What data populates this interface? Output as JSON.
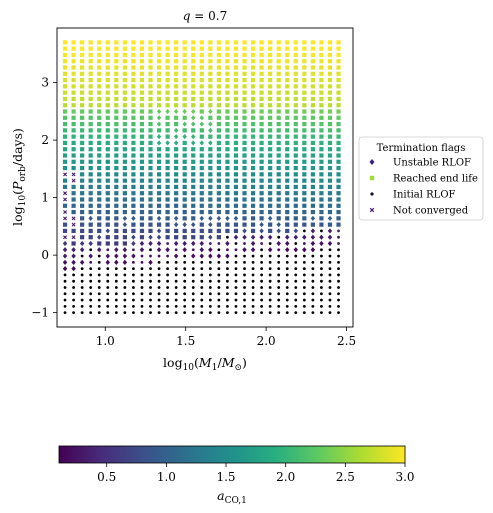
{
  "chart_data": {
    "type": "scatter",
    "title": "q = 0.7",
    "xlabel": "log10(M1/M⊙)",
    "ylabel": "log10(Porb/days)",
    "xlim": [
      0.7,
      2.54
    ],
    "ylim": [
      -1.25,
      3.95
    ],
    "xticks": [
      1.0,
      1.5,
      2.0,
      2.5
    ],
    "xtick_labels": [
      "1.0",
      "1.5",
      "2.0",
      "2.5"
    ],
    "yticks": [
      -1,
      0,
      1,
      2,
      3
    ],
    "ytick_labels": [
      "−1",
      "0",
      "1",
      "2",
      "3"
    ],
    "grid": {
      "x_start": 0.75,
      "x_end": 2.45,
      "x_count": 33,
      "y_start": -1.0,
      "y_end": 3.7,
      "y_count": 44
    },
    "color_value_range": [
      0.1,
      3.0
    ],
    "colormap": "viridis",
    "colorbar": {
      "label": "aCO,1",
      "range": [
        0.1,
        3.0
      ],
      "ticks": [
        0.5,
        1.0,
        1.5,
        2.0,
        2.5,
        3.0
      ],
      "tick_labels": [
        "0.5",
        "1.0",
        "1.5",
        "2.0",
        "2.5",
        "3.0"
      ],
      "position": "bottom"
    },
    "legend": {
      "title": "Termination flags",
      "placement": "outside-right",
      "entries": [
        {
          "label": "Unstable RLOF",
          "marker": "diamond",
          "color": "#3b1f74"
        },
        {
          "label": "Reached end life",
          "marker": "square",
          "color": "#9bd93c"
        },
        {
          "label": "Initial RLOF",
          "marker": "circle",
          "color": "#1a0a2e"
        },
        {
          "label": "Not converged",
          "marker": "x",
          "color": "#4a1a6b"
        }
      ]
    },
    "regions": {
      "initial_rlof_black": "lower region, below roughly log10(P) = 0.1 at high mass and below about -0.2 at low mass",
      "unstable_rlof": "scattered diamonds near log10(P) between -0.5 and 0.6 and mid-band diamonds near 2.0 to 2.5 around M1 of 1.4 to 1.6",
      "reached_end_life": "most points above log10(P) about 0.4, color increasing with period",
      "not_converged": "sparse x markers on the left edge near log10(P) 0.5 to 1.5"
    }
  }
}
